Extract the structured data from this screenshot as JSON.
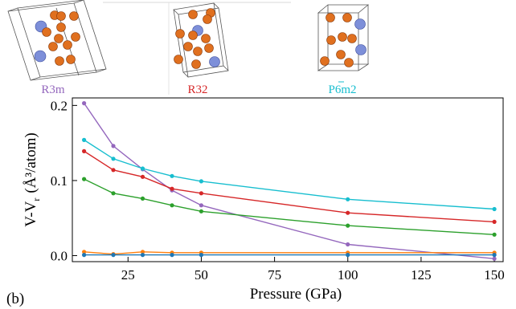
{
  "structures": [
    {
      "label": "R3m",
      "color": "#9467bd"
    },
    {
      "label": "R32",
      "color": "#d62728"
    },
    {
      "label": "P6m2",
      "color": "#17becf"
    }
  ],
  "panel_label": "(b)",
  "chart_data": {
    "type": "line",
    "xlabel": "Pressure (GPa)",
    "ylabel_main": "V-V",
    "ylabel_sub": "r",
    "ylabel_unit": "(Å³/atom)",
    "xlim": [
      6,
      153
    ],
    "ylim": [
      -0.008,
      0.21
    ],
    "xticks": [
      25,
      50,
      75,
      100,
      125,
      150
    ],
    "yticks": [
      0.0,
      0.1,
      0.2
    ],
    "xtick_labels": [
      "25",
      "50",
      "75",
      "100",
      "125",
      "150"
    ],
    "ytick_labels": [
      "0.0",
      "0.1",
      "0.2"
    ],
    "x": [
      10,
      20,
      30,
      40,
      50,
      100,
      150
    ],
    "series": [
      {
        "color": "#9467bd",
        "values": [
          0.203,
          0.146,
          0.115,
          0.087,
          0.067,
          0.015,
          -0.004
        ]
      },
      {
        "color": "#d62728",
        "values": [
          0.139,
          0.114,
          0.105,
          0.089,
          0.083,
          0.057,
          0.045
        ]
      },
      {
        "color": "#17becf",
        "values": [
          0.154,
          0.129,
          0.116,
          0.106,
          0.099,
          0.075,
          0.062
        ]
      },
      {
        "color": "#2ca02c",
        "values": [
          0.102,
          0.083,
          0.076,
          0.067,
          0.059,
          0.04,
          0.028
        ]
      },
      {
        "color": "#ff7f0e",
        "values": [
          0.005,
          0.002,
          0.005,
          0.004,
          0.004,
          0.004,
          0.004
        ]
      },
      {
        "color": "#1f77b4",
        "values": [
          0.001,
          0.001,
          0.001,
          0.001,
          0.001,
          0.001,
          0.001
        ]
      }
    ]
  }
}
